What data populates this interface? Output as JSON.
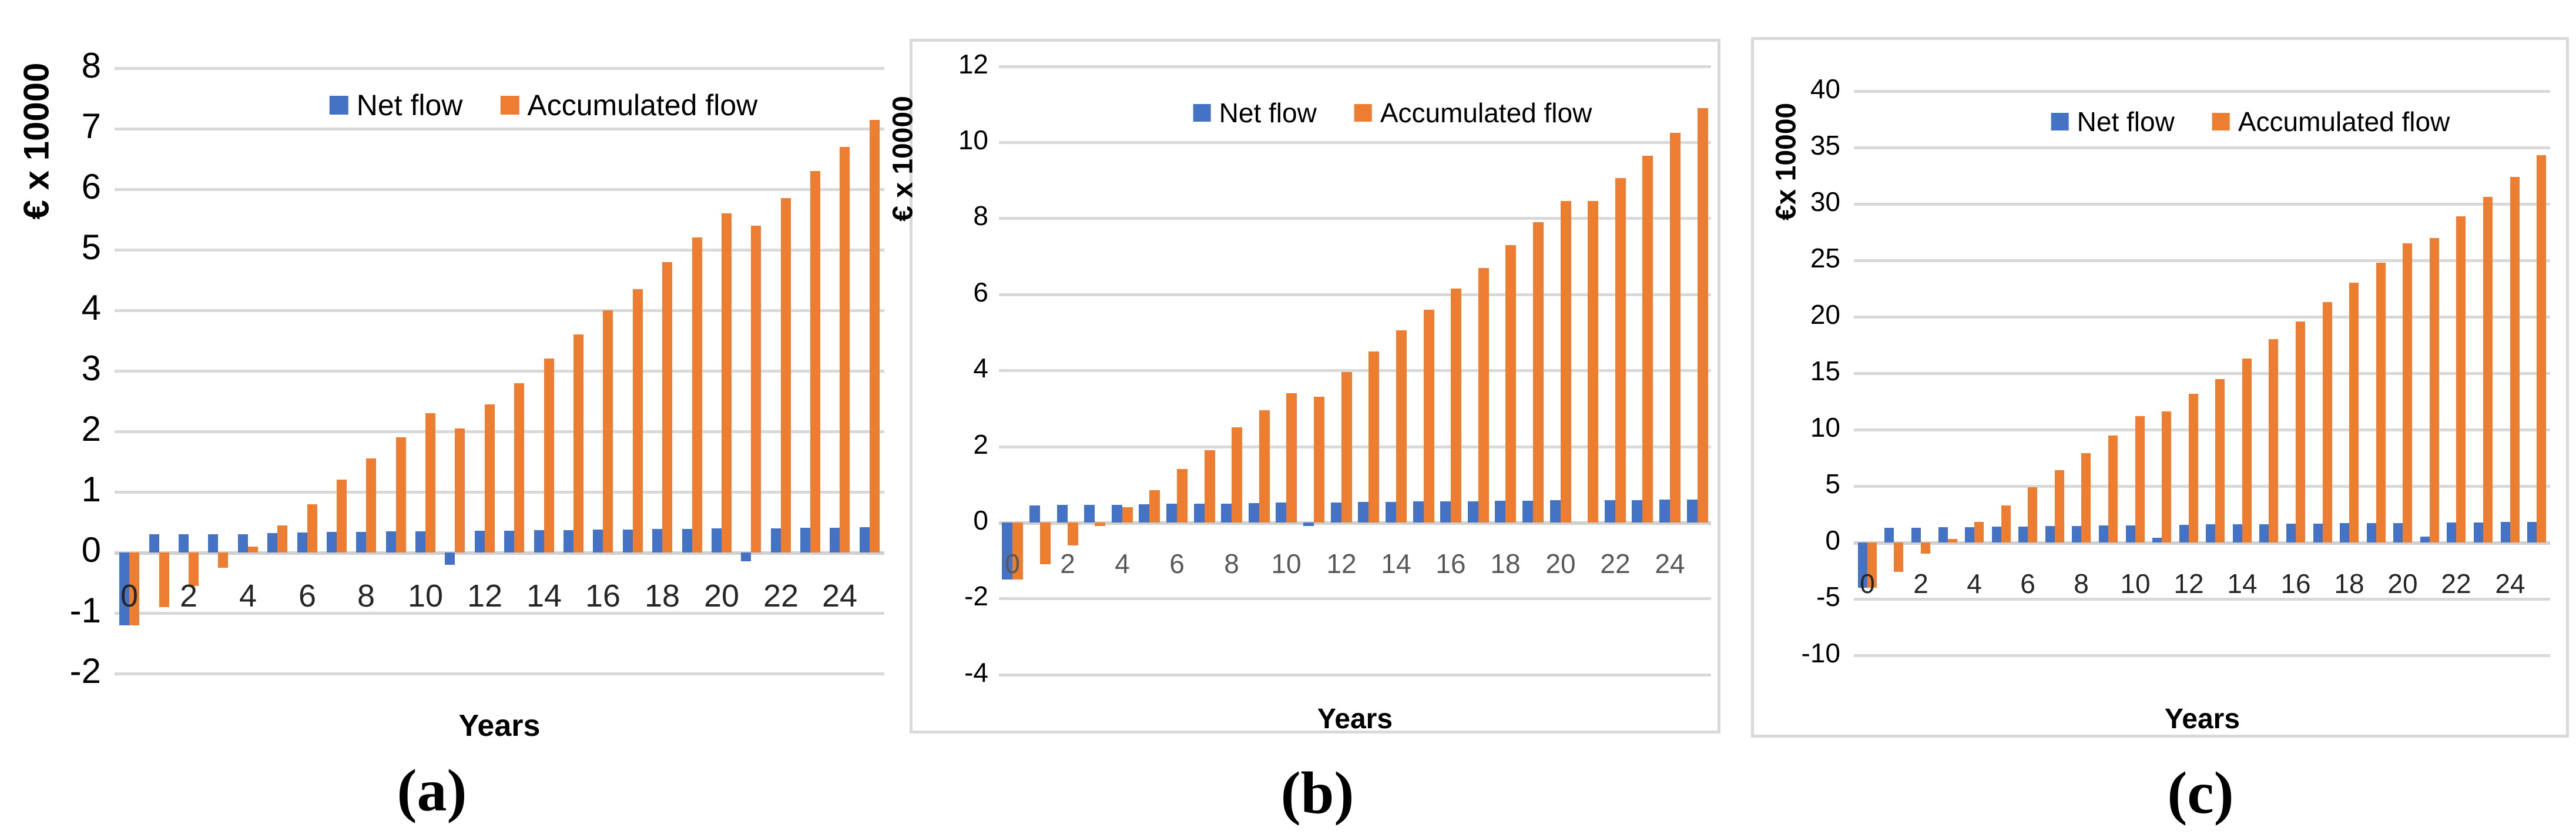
{
  "figure": {
    "captions": {
      "a": "(a)",
      "b": "(b)",
      "c": "(c)"
    },
    "colors": {
      "net_flow": "#4472C4",
      "accumulated_flow": "#ED7D31",
      "gridline": "#D9D9D9",
      "axis_line": "#D0D0D0",
      "panel_border": "#D9D9D9",
      "x_tick_gray": "#595959",
      "text": "#000000"
    }
  },
  "chart_data": [
    {
      "id": "a",
      "type": "bar",
      "caption": "(a)",
      "title": "",
      "xlabel": "Years",
      "ylabel": "€ x 10000",
      "ylim": [
        -2,
        8
      ],
      "yticks": [
        8,
        7,
        6,
        5,
        4,
        3,
        2,
        1,
        0,
        -1,
        -2
      ],
      "categories": [
        0,
        1,
        2,
        3,
        4,
        5,
        6,
        7,
        8,
        9,
        10,
        11,
        12,
        13,
        14,
        15,
        16,
        17,
        18,
        19,
        20,
        21,
        22,
        23,
        24,
        25
      ],
      "xticks_shown": [
        0,
        2,
        4,
        6,
        8,
        10,
        12,
        14,
        16,
        18,
        20,
        22,
        24
      ],
      "grid": true,
      "legend_position": "top-center",
      "series": [
        {
          "name": "Net flow",
          "color": "#4472C4",
          "values": [
            -1.2,
            0.3,
            0.3,
            0.3,
            0.3,
            0.32,
            0.33,
            0.34,
            0.34,
            0.35,
            0.35,
            -0.2,
            0.36,
            0.36,
            0.37,
            0.37,
            0.38,
            0.38,
            0.39,
            0.39,
            0.4,
            -0.15,
            0.4,
            0.41,
            0.41,
            0.42
          ]
        },
        {
          "name": "Accumulated flow",
          "color": "#ED7D31",
          "values": [
            -1.2,
            -0.9,
            -0.55,
            -0.25,
            0.1,
            0.45,
            0.8,
            1.2,
            1.55,
            1.9,
            2.3,
            2.05,
            2.45,
            2.8,
            3.2,
            3.6,
            4.0,
            4.35,
            4.8,
            5.2,
            5.6,
            5.4,
            5.85,
            6.3,
            6.7,
            7.15
          ]
        }
      ]
    },
    {
      "id": "b",
      "type": "bar",
      "caption": "(b)",
      "title": "",
      "xlabel": "Years",
      "ylabel": "€ x 10000",
      "ylim": [
        -4,
        12
      ],
      "yticks": [
        12,
        10,
        8,
        6,
        4,
        2,
        0,
        -2,
        -4
      ],
      "categories": [
        0,
        1,
        2,
        3,
        4,
        5,
        6,
        7,
        8,
        9,
        10,
        11,
        12,
        13,
        14,
        15,
        16,
        17,
        18,
        19,
        20,
        21,
        22,
        23,
        24,
        25
      ],
      "xticks_shown": [
        0,
        2,
        4,
        6,
        8,
        10,
        12,
        14,
        16,
        18,
        20,
        22,
        24
      ],
      "grid": true,
      "legend_position": "top-center",
      "series": [
        {
          "name": "Net flow",
          "color": "#4472C4",
          "values": [
            -1.5,
            0.45,
            0.46,
            0.46,
            0.47,
            0.48,
            0.49,
            0.5,
            0.5,
            0.51,
            0.52,
            -0.1,
            0.53,
            0.54,
            0.54,
            0.55,
            0.56,
            0.56,
            0.57,
            0.57,
            0.58,
            0,
            0.58,
            0.59,
            0.6,
            0.6
          ]
        },
        {
          "name": "Accumulated flow",
          "color": "#ED7D31",
          "values": [
            -1.5,
            -1.1,
            -0.6,
            -0.1,
            0.4,
            0.85,
            1.4,
            1.9,
            2.5,
            2.95,
            3.4,
            3.3,
            3.95,
            4.5,
            5.05,
            5.6,
            6.15,
            6.7,
            7.3,
            7.9,
            8.45,
            8.45,
            9.05,
            9.65,
            10.25,
            10.9
          ]
        }
      ]
    },
    {
      "id": "c",
      "type": "bar",
      "caption": "(c)",
      "title": "",
      "xlabel": "Years",
      "ylabel": "€x 10000",
      "ylim": [
        -10,
        40
      ],
      "yticks": [
        40,
        35,
        30,
        25,
        20,
        15,
        10,
        5,
        0,
        -5,
        -10
      ],
      "categories": [
        0,
        1,
        2,
        3,
        4,
        5,
        6,
        7,
        8,
        9,
        10,
        11,
        12,
        13,
        14,
        15,
        16,
        17,
        18,
        19,
        20,
        21,
        22,
        23,
        24,
        25
      ],
      "xticks_shown": [
        0,
        2,
        4,
        6,
        8,
        10,
        12,
        14,
        16,
        18,
        20,
        22,
        24
      ],
      "grid": true,
      "legend_position": "top-center",
      "series": [
        {
          "name": "Net flow",
          "color": "#4472C4",
          "values": [
            -4.0,
            1.3,
            1.3,
            1.35,
            1.35,
            1.4,
            1.4,
            1.45,
            1.45,
            1.5,
            1.5,
            0.4,
            1.55,
            1.6,
            1.6,
            1.6,
            1.65,
            1.65,
            1.7,
            1.7,
            1.7,
            0.5,
            1.75,
            1.75,
            1.8,
            1.8
          ]
        },
        {
          "name": "Accumulated flow",
          "color": "#ED7D31",
          "values": [
            -4.0,
            -2.6,
            -1.0,
            0.3,
            1.8,
            3.3,
            4.9,
            6.4,
            7.9,
            9.5,
            11.2,
            11.6,
            13.2,
            14.5,
            16.3,
            18.0,
            19.6,
            21.3,
            23.0,
            24.8,
            26.5,
            27.0,
            28.9,
            30.6,
            32.4,
            34.3
          ]
        }
      ]
    }
  ]
}
